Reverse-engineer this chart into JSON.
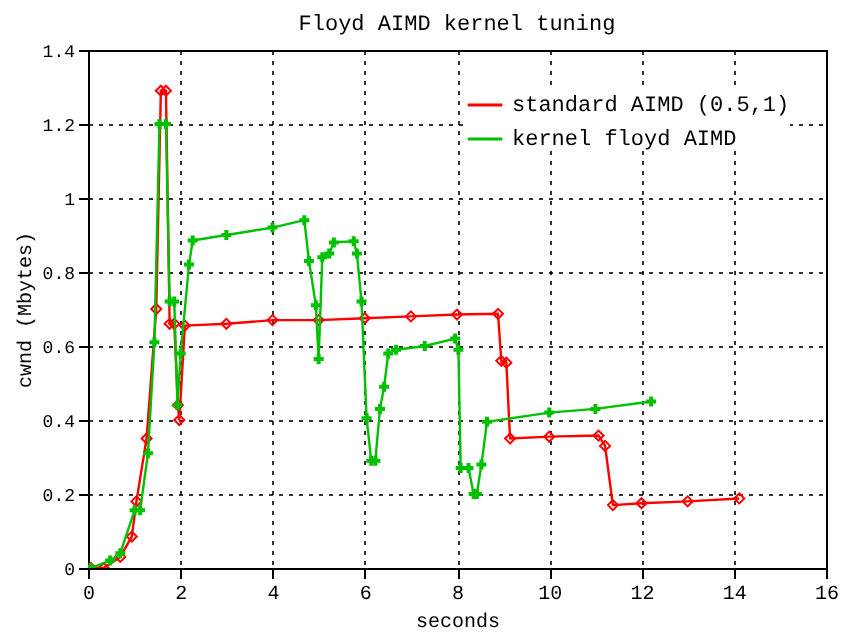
{
  "chart_data": {
    "type": "line",
    "title": "Floyd AIMD kernel tuning",
    "xlabel": "seconds",
    "ylabel": "cwnd (Mbytes)",
    "xlim": [
      0,
      16
    ],
    "xticks": [
      0,
      2,
      4,
      6,
      8,
      10,
      12,
      14,
      16
    ],
    "ylim": [
      0,
      1.4
    ],
    "yticks": [
      0,
      0.2,
      0.4,
      0.6,
      0.8,
      1,
      1.2,
      1.4
    ],
    "grid": true,
    "legend": "top right",
    "series": [
      {
        "name": "standard AIMD (0.5,1)",
        "color": "#ff0000",
        "marker": "diamond",
        "x": [
          0.06,
          0.34,
          0.7,
          0.95,
          1.05,
          1.27,
          1.48,
          1.58,
          1.69,
          1.77,
          1.87,
          1.95,
          1.98,
          2.1,
          3,
          4,
          5,
          6,
          7,
          8,
          8.89,
          8.96,
          9.07,
          9.15,
          10,
          11.07,
          11.21,
          11.38,
          12,
          13,
          14.12
        ],
        "values": [
          0,
          0,
          0.03,
          0.085,
          0.18,
          0.35,
          0.7,
          1.29,
          1.29,
          0.66,
          0.66,
          0.44,
          0.4,
          0.655,
          0.66,
          0.67,
          0.67,
          0.675,
          0.68,
          0.685,
          0.687,
          0.56,
          0.555,
          0.35,
          0.355,
          0.358,
          0.33,
          0.17,
          0.175,
          0.18,
          0.188
        ]
      },
      {
        "name": "kernel floyd AIMD",
        "color": "#00c000",
        "marker": "cross",
        "x": [
          0.06,
          0.48,
          0.7,
          1.01,
          1.13,
          1.3,
          1.44,
          1.55,
          1.69,
          1.77,
          1.87,
          1.94,
          2.01,
          2.19,
          2.27,
          3,
          4,
          4.69,
          4.79,
          4.94,
          5,
          5.08,
          5.23,
          5.33,
          5.76,
          5.83,
          5.93,
          6.04,
          6.14,
          6.23,
          6.33,
          6.42,
          6.51,
          6.68,
          7.3,
          7.96,
          8.03,
          8.08,
          8.25,
          8.36,
          8.43,
          8.53,
          8.65,
          10,
          11,
          12.21
        ],
        "values": [
          0,
          0.02,
          0.04,
          0.156,
          0.156,
          0.31,
          0.61,
          1.2,
          1.2,
          0.72,
          0.72,
          0.44,
          0.58,
          0.82,
          0.885,
          0.9,
          0.92,
          0.94,
          0.83,
          0.71,
          0.565,
          0.84,
          0.85,
          0.88,
          0.883,
          0.85,
          0.72,
          0.405,
          0.29,
          0.29,
          0.43,
          0.49,
          0.58,
          0.59,
          0.6,
          0.62,
          0.59,
          0.27,
          0.27,
          0.2,
          0.2,
          0.28,
          0.395,
          0.42,
          0.43,
          0.45
        ]
      }
    ]
  }
}
